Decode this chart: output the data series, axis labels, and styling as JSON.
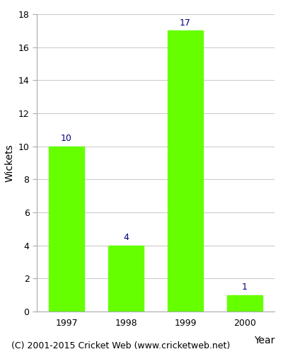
{
  "categories": [
    "1997",
    "1998",
    "1999",
    "2000"
  ],
  "values": [
    10,
    4,
    17,
    1
  ],
  "bar_color": "#66ff00",
  "label_color": "#000080",
  "ylabel": "Wickets",
  "xlabel": "Year",
  "ylim": [
    0,
    18
  ],
  "yticks": [
    0,
    2,
    4,
    6,
    8,
    10,
    12,
    14,
    16,
    18
  ],
  "footnote": "(C) 2001-2015 Cricket Web (www.cricketweb.net)",
  "footnote_fontsize": 9,
  "label_fontsize": 9,
  "axis_label_fontsize": 10,
  "tick_fontsize": 9,
  "background_color": "#ffffff",
  "grid_color": "#cccccc",
  "spine_color": "#aaaaaa"
}
